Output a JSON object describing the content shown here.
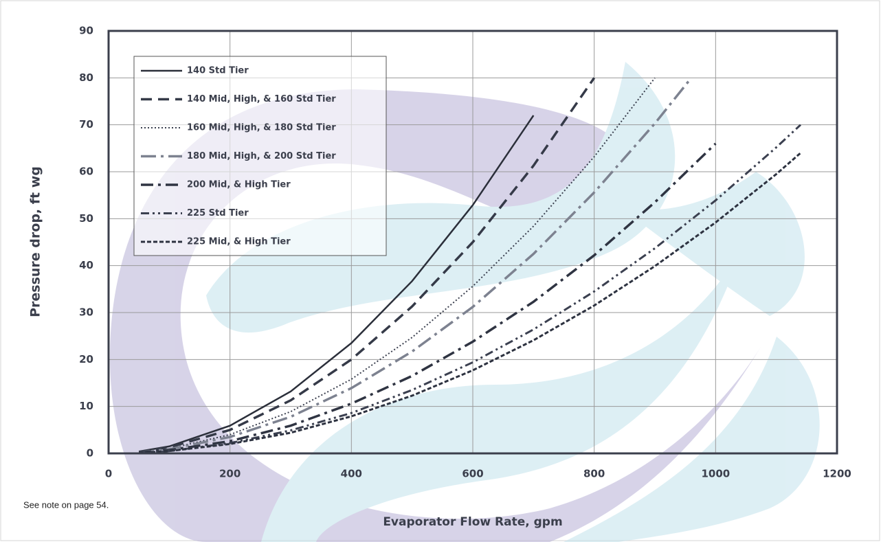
{
  "chart_data": {
    "type": "line",
    "x_label": "Evaporator Flow Rate, gpm",
    "y_label": "Pressure drop, ft wg",
    "note": "See note on page 54.",
    "xlim": [
      0,
      1200
    ],
    "xticks": [
      0,
      200,
      400,
      600,
      800,
      1000,
      1200
    ],
    "ylim": [
      0,
      90
    ],
    "yticks": [
      0,
      10,
      20,
      30,
      40,
      50,
      60,
      70,
      80,
      90
    ],
    "grid": true,
    "legend": "upper left",
    "series": [
      {
        "name": "140 Std Tier",
        "color": "#2b2f3a",
        "dash": "solid",
        "x": [
          50,
          100,
          200,
          300,
          400,
          500,
          600,
          700
        ],
        "values": [
          0.4,
          1.5,
          5.9,
          13.2,
          23.5,
          36.7,
          52.9,
          72
        ]
      },
      {
        "name": "140 Mid, High, & 160 Std Tier",
        "color": "#353a48",
        "dash": "dashed",
        "x": [
          50,
          100,
          200,
          300,
          400,
          500,
          600,
          700,
          800
        ],
        "values": [
          0.3,
          1.3,
          5,
          11.3,
          20,
          31.3,
          45,
          61.3,
          80
        ]
      },
      {
        "name": "160 Mid, High, & 180 Std Tier",
        "color": "#3a3f4e",
        "dash": "dotted",
        "x": [
          50,
          100,
          200,
          300,
          400,
          500,
          600,
          700,
          800,
          900
        ],
        "values": [
          0.2,
          1,
          4,
          8.9,
          15.8,
          24.7,
          35.6,
          48.4,
          63.2,
          80
        ]
      },
      {
        "name": "180 Mid, High, & 200 Std Tier",
        "color": "#7d8290",
        "dash": "longdashdot",
        "x": [
          50,
          100,
          200,
          300,
          400,
          500,
          600,
          700,
          800,
          900,
          960
        ],
        "values": [
          0.2,
          0.9,
          3.5,
          7.8,
          13.9,
          21.7,
          31.2,
          42.5,
          55.6,
          70.3,
          80
        ]
      },
      {
        "name": "200 Mid, & High Tier",
        "color": "#2f3442",
        "dash": "dashdot",
        "x": [
          50,
          100,
          200,
          300,
          400,
          500,
          600,
          700,
          800,
          900,
          1000
        ],
        "values": [
          0.2,
          0.7,
          2.6,
          5.9,
          10.6,
          16.5,
          23.8,
          32.3,
          42.2,
          53.5,
          66
        ]
      },
      {
        "name": "225 Std Tier",
        "color": "#3b4050",
        "dash": "dashdotdot",
        "x": [
          50,
          100,
          200,
          300,
          400,
          500,
          600,
          700,
          800,
          900,
          1000,
          1100,
          1140
        ],
        "values": [
          0.1,
          0.5,
          2.2,
          4.9,
          8.6,
          13.5,
          19.4,
          26.4,
          34.5,
          43.7,
          53.9,
          65.2,
          70
        ]
      },
      {
        "name": "225 Mid, & High Tier",
        "color": "#2d3240",
        "dash": "shortdash",
        "x": [
          50,
          100,
          200,
          300,
          400,
          500,
          600,
          700,
          800,
          900,
          1000,
          1100,
          1140
        ],
        "values": [
          0.1,
          0.5,
          2,
          4.4,
          7.9,
          12.3,
          17.7,
          24.1,
          31.5,
          39.9,
          49.2,
          59.5,
          64
        ]
      }
    ]
  }
}
